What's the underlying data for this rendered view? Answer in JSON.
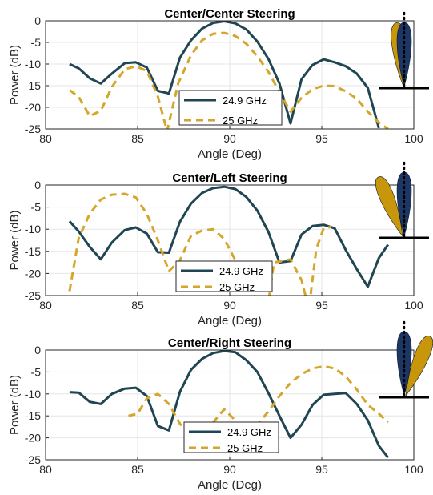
{
  "colors": {
    "series1": "#1f4652",
    "series2": "#d4a72c",
    "beam_navy": "#1c3766",
    "beam_gold": "#c8960a",
    "grid": "#e6e6e6",
    "axis": "#262626"
  },
  "chart_data": [
    {
      "type": "line",
      "title": "Center/Center Steering",
      "xlabel": "Angle (Deg)",
      "ylabel": "Power (dB)",
      "xlim": [
        80,
        100
      ],
      "ylim": [
        -25,
        0
      ],
      "xticks": [
        80,
        85,
        90,
        95,
        100
      ],
      "yticks": [
        0,
        -5,
        -10,
        -15,
        -20,
        -25
      ],
      "grid": true,
      "legend_position": "bottom-center",
      "beam_icon": "center-center",
      "series": [
        {
          "name": "24.9 GHz",
          "style": "solid",
          "x": [
            81.3,
            81.8,
            82.4,
            83.0,
            83.6,
            84.3,
            84.9,
            85.5,
            86.1,
            86.7,
            87.3,
            87.9,
            88.5,
            89.1,
            89.7,
            90.3,
            90.9,
            91.5,
            92.1,
            92.7,
            93.3,
            93.9,
            94.5,
            95.1,
            95.7,
            96.3,
            96.9,
            97.5,
            98.1
          ],
          "y": [
            -10,
            -11,
            -13.3,
            -14.5,
            -12.2,
            -9.8,
            -9.6,
            -10.8,
            -16.2,
            -16.8,
            -8.5,
            -4.5,
            -1.8,
            -0.5,
            -0.1,
            -0.6,
            -2,
            -4.8,
            -8.8,
            -14.5,
            -23.7,
            -13.5,
            -10.2,
            -8.9,
            -9.6,
            -10.5,
            -12.2,
            -15.5,
            -24.8
          ]
        },
        {
          "name": "25 GHz",
          "style": "dashed",
          "x": [
            81.3,
            81.8,
            82.4,
            83.0,
            83.6,
            84.3,
            84.9,
            85.5,
            86.1,
            86.6,
            87.2,
            87.9,
            88.5,
            89.1,
            89.7,
            90.3,
            90.9,
            91.5,
            92.1,
            92.7,
            93.3,
            93.9,
            94.5,
            95.1,
            95.7,
            96.3,
            96.9,
            97.5,
            98.1,
            98.6
          ],
          "y": [
            -16,
            -17.6,
            -22,
            -20.8,
            -15.3,
            -11.2,
            -10.5,
            -11.6,
            -17.5,
            -25.5,
            -14.5,
            -8,
            -4.5,
            -3,
            -2.8,
            -3.5,
            -5.3,
            -8.2,
            -11.8,
            -16.5,
            -21,
            -17.8,
            -15.8,
            -15,
            -15.1,
            -16.3,
            -18,
            -21,
            -23.5,
            -25
          ]
        }
      ]
    },
    {
      "type": "line",
      "title": "Center/Left Steering",
      "xlabel": "Angle (Deg)",
      "ylabel": "Power (dB)",
      "xlim": [
        80,
        100
      ],
      "ylim": [
        -25,
        0
      ],
      "xticks": [
        80,
        85,
        90,
        95,
        100
      ],
      "yticks": [
        0,
        -5,
        -10,
        -15,
        -20,
        -25
      ],
      "grid": true,
      "legend_position": "bottom-center",
      "beam_icon": "center-left",
      "series": [
        {
          "name": "24.9 GHz",
          "style": "solid",
          "x": [
            81.3,
            81.8,
            82.4,
            83.0,
            83.6,
            84.3,
            84.9,
            85.5,
            86.1,
            86.7,
            87.3,
            87.9,
            88.5,
            89.1,
            89.7,
            90.3,
            90.9,
            91.5,
            92.1,
            92.7,
            93.3,
            93.9,
            94.5,
            95.1,
            95.7,
            96.3,
            96.9,
            97.5,
            98.1,
            98.6
          ],
          "y": [
            -8.2,
            -10.5,
            -14,
            -16.8,
            -13,
            -10.2,
            -9.6,
            -11,
            -15.2,
            -15.3,
            -8.3,
            -4.2,
            -1.8,
            -0.7,
            -0.4,
            -0.9,
            -2.7,
            -5.8,
            -10.6,
            -17.5,
            -17.2,
            -11.2,
            -9.3,
            -9,
            -9.8,
            -14.7,
            -19,
            -23,
            -16.5,
            -13.5
          ]
        },
        {
          "name": "25 GHz",
          "style": "dashed",
          "x": [
            81.3,
            81.8,
            82.4,
            83.0,
            83.6,
            84.3,
            84.9,
            85.5,
            86.1,
            86.7,
            87.3,
            87.9,
            88.5,
            89.1,
            89.7,
            90.3,
            90.9,
            91.5,
            92.1,
            92.4,
            92.7,
            93.3,
            93.9,
            94.3,
            94.7,
            95.1,
            95.5
          ],
          "y": [
            -24,
            -12,
            -6.5,
            -3.3,
            -2.2,
            -2,
            -2.8,
            -6.5,
            -12.5,
            -19.5,
            -17,
            -11.5,
            -10.3,
            -10,
            -12.2,
            -17,
            -22.2,
            -26.5,
            -26.5,
            -17.5,
            -17.3,
            -16.8,
            -21.5,
            -28,
            -14.5,
            -9.8,
            -9.5
          ]
        }
      ]
    },
    {
      "type": "line",
      "title": "Center/Right Steering",
      "xlabel": "Angle (Deg)",
      "ylabel": "Power (dB)",
      "xlim": [
        80,
        100
      ],
      "ylim": [
        -25,
        0
      ],
      "xticks": [
        80,
        85,
        90,
        95,
        100
      ],
      "yticks": [
        0,
        -5,
        -10,
        -15,
        -20,
        -25
      ],
      "grid": true,
      "legend_position": "bottom-center",
      "beam_icon": "center-right",
      "series": [
        {
          "name": "24.9 GHz",
          "style": "solid",
          "x": [
            81.3,
            81.8,
            82.4,
            83.0,
            83.6,
            84.3,
            84.9,
            85.5,
            86.1,
            86.7,
            87.3,
            87.9,
            88.5,
            89.1,
            89.7,
            90.3,
            90.9,
            91.5,
            92.1,
            92.7,
            93.3,
            93.9,
            94.5,
            95.1,
            95.7,
            96.3,
            96.9,
            97.5,
            98.1,
            98.6
          ],
          "y": [
            -9.6,
            -9.7,
            -11.8,
            -12.3,
            -10,
            -8.8,
            -8.6,
            -10.5,
            -17.3,
            -18.3,
            -9.5,
            -4.5,
            -2,
            -0.7,
            -0.2,
            -0.5,
            -2.3,
            -5,
            -9.8,
            -15,
            -20,
            -17,
            -12.5,
            -10.2,
            -10,
            -9.8,
            -12.3,
            -16,
            -21.8,
            -24.5
          ]
        },
        {
          "name": "25 GHz",
          "style": "dashed",
          "x": [
            84.5,
            85.0,
            85.5,
            86.1,
            86.7,
            87.3,
            87.9,
            88.5,
            89.1,
            89.7,
            90.3,
            90.9,
            91.5,
            92.1,
            92.7,
            93.3,
            93.9,
            94.5,
            95.1,
            95.7,
            96.3,
            96.9,
            97.5,
            98.1,
            98.6
          ],
          "y": [
            -15,
            -14.5,
            -11,
            -10,
            -12.3,
            -16.8,
            -19.5,
            -19.3,
            -16.5,
            -13.5,
            -16,
            -22,
            -17,
            -14,
            -10.5,
            -7.5,
            -5.5,
            -4.2,
            -3.7,
            -4.2,
            -6,
            -9,
            -12.5,
            -14.5,
            -16.5
          ]
        }
      ]
    }
  ]
}
